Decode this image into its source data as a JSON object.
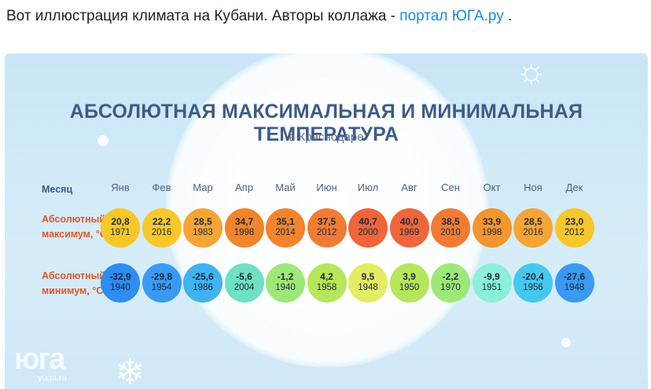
{
  "caption": {
    "text": "Вот иллюстрация климата на Кубани. Авторы коллажа - ",
    "link": "портал ЮГА.ру",
    "suffix": " ."
  },
  "infographic": {
    "title": "АБСОЛЮТНАЯ МАКСИМАЛЬНАЯ И МИНИМАЛЬНАЯ ТЕМПЕРАТУРА",
    "subtitle": "в Краснодаре",
    "row_labels": {
      "month": "Месяц",
      "max_line1": "Абсолютный",
      "max_line2": "максимум, °C",
      "min_line1": "Абсолютный",
      "min_line2": "минимум, °C"
    },
    "months": [
      "Янв",
      "Фев",
      "Мар",
      "Апр",
      "Май",
      "Июн",
      "Июл",
      "Авг",
      "Сен",
      "Окт",
      "Ноя",
      "Дек"
    ],
    "max": [
      {
        "value": "20,8",
        "year": "1971",
        "color": "#f8c72a"
      },
      {
        "value": "22,2",
        "year": "2016",
        "color": "#f8c72a"
      },
      {
        "value": "28,5",
        "year": "1983",
        "color": "#f6a534"
      },
      {
        "value": "34,7",
        "year": "1998",
        "color": "#f2842c"
      },
      {
        "value": "35,1",
        "year": "2014",
        "color": "#f2842c"
      },
      {
        "value": "37,5",
        "year": "2012",
        "color": "#f27b34"
      },
      {
        "value": "40,7",
        "year": "2000",
        "color": "#f0653a"
      },
      {
        "value": "40,0",
        "year": "1969",
        "color": "#f0653a"
      },
      {
        "value": "38,5",
        "year": "2010",
        "color": "#f27b34"
      },
      {
        "value": "33,9",
        "year": "1998",
        "color": "#f4952f"
      },
      {
        "value": "28,5",
        "year": "2016",
        "color": "#f6a534"
      },
      {
        "value": "23,0",
        "year": "2012",
        "color": "#f8c72a"
      }
    ],
    "min": [
      {
        "value": "-32,9",
        "year": "1940",
        "color": "#2f8cf0"
      },
      {
        "value": "-29,8",
        "year": "1954",
        "color": "#3a9af2"
      },
      {
        "value": "-25,6",
        "year": "1986",
        "color": "#3fb2f2"
      },
      {
        "value": "-5,6",
        "year": "2004",
        "color": "#6fe0c2"
      },
      {
        "value": "-1,2",
        "year": "1940",
        "color": "#9ee878"
      },
      {
        "value": "4,2",
        "year": "1958",
        "color": "#b6e65a"
      },
      {
        "value": "9,5",
        "year": "1948",
        "color": "#e5ec62"
      },
      {
        "value": "3,9",
        "year": "1950",
        "color": "#b6e65a"
      },
      {
        "value": "-2,2",
        "year": "1970",
        "color": "#9ee878"
      },
      {
        "value": "-9,9",
        "year": "1951",
        "color": "#8cf0d8"
      },
      {
        "value": "-20,4",
        "year": "1956",
        "color": "#46c8ee"
      },
      {
        "value": "-27,6",
        "year": "1948",
        "color": "#3a9af2"
      }
    ],
    "watermark": {
      "logo": "юга",
      "site": "yuga.ru"
    }
  }
}
